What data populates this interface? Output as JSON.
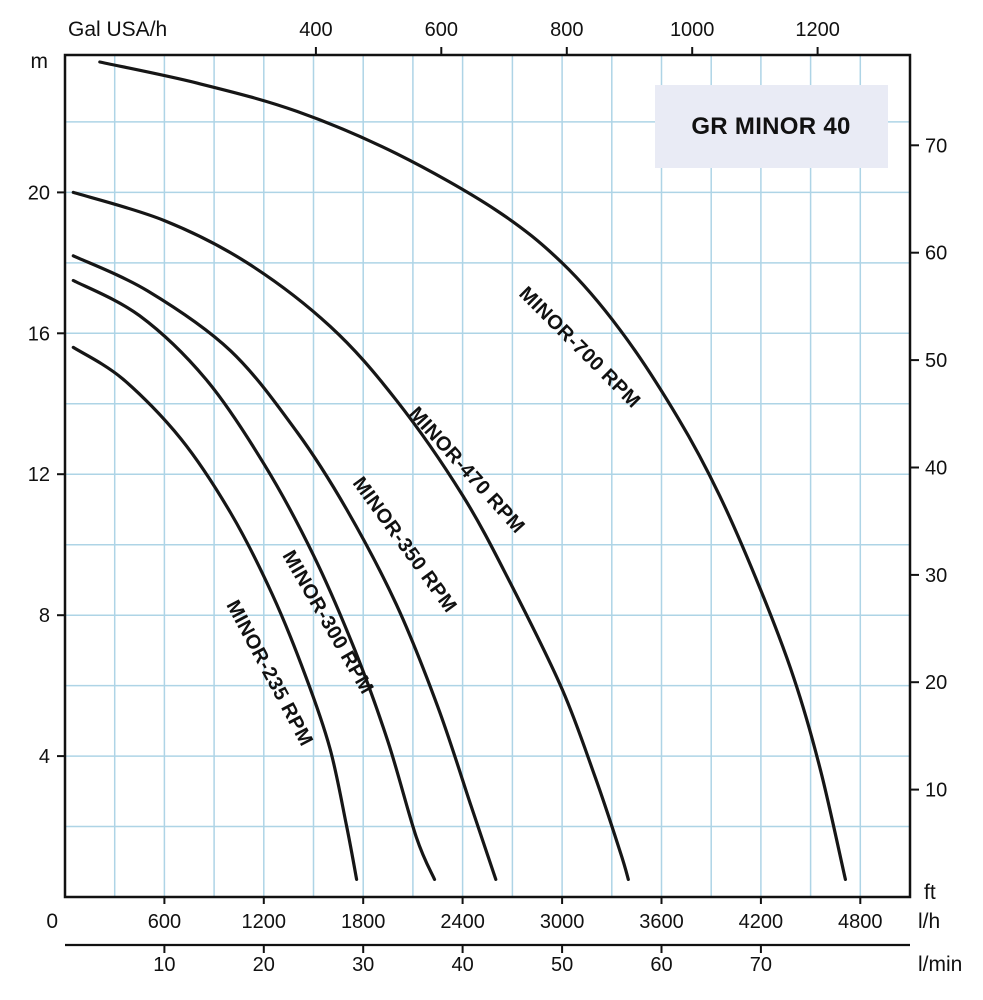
{
  "chart_data": {
    "type": "line",
    "title": "GR MINOR 40",
    "title_bg": "#e9ebf5",
    "colors": {
      "grid": "#aed4e6",
      "axis": "#111111",
      "curve": "#161616",
      "text": "#111111"
    },
    "grid": {
      "x_step_lh": 300,
      "y_step_m": 2,
      "on": true
    },
    "axes": {
      "top": {
        "unit": "Gal USA/h",
        "ticks": [
          400,
          600,
          800,
          1000,
          1200
        ],
        "lh_per_gal": 3.7854
      },
      "left": {
        "unit": "m",
        "ticks": [
          20,
          16,
          12,
          8,
          4
        ],
        "origin_label": "0",
        "range": [
          0,
          23.9
        ]
      },
      "right": {
        "unit": "ft",
        "ticks": [
          70,
          60,
          50,
          40,
          30,
          20,
          10
        ],
        "ft_per_m": 3.2808
      },
      "bottom_lh": {
        "unit": "l/h",
        "ticks": [
          600,
          1200,
          1800,
          2400,
          3000,
          3600,
          4200,
          4800
        ],
        "range": [
          0,
          5100
        ]
      },
      "bottom_lmin": {
        "unit": "l/min",
        "ticks": [
          10,
          20,
          30,
          40,
          50,
          60,
          70
        ],
        "lh_per_lmin": 60
      }
    },
    "series": [
      {
        "name": "MINOR-700 RPM",
        "label_anchor_lh_m": [
          2734,
          17.1
        ],
        "label_angle_deg": 45,
        "points_lh_m": [
          [
            210,
            23.7
          ],
          [
            800,
            23.1
          ],
          [
            1400,
            22.3
          ],
          [
            2000,
            21.1
          ],
          [
            2600,
            19.5
          ],
          [
            3000,
            18.0
          ],
          [
            3350,
            16.1
          ],
          [
            3700,
            13.6
          ],
          [
            3950,
            11.4
          ],
          [
            4200,
            8.7
          ],
          [
            4400,
            6.2
          ],
          [
            4560,
            3.6
          ],
          [
            4710,
            0.5
          ]
        ]
      },
      {
        "name": "MINOR-470 RPM",
        "label_anchor_lh_m": [
          2070,
          13.7
        ],
        "label_angle_deg": 48,
        "points_lh_m": [
          [
            50,
            20.0
          ],
          [
            600,
            19.2
          ],
          [
            1100,
            18.0
          ],
          [
            1600,
            16.2
          ],
          [
            2000,
            14.1
          ],
          [
            2400,
            11.4
          ],
          [
            2700,
            8.8
          ],
          [
            3000,
            5.9
          ],
          [
            3200,
            3.4
          ],
          [
            3350,
            1.3
          ],
          [
            3400,
            0.5
          ]
        ]
      },
      {
        "name": "MINOR-350 RPM",
        "label_anchor_lh_m": [
          1732,
          11.75
        ],
        "label_angle_deg": 54,
        "points_lh_m": [
          [
            50,
            18.2
          ],
          [
            500,
            17.2
          ],
          [
            1000,
            15.5
          ],
          [
            1400,
            13.2
          ],
          [
            1700,
            11.0
          ],
          [
            2000,
            8.3
          ],
          [
            2250,
            5.4
          ],
          [
            2450,
            2.6
          ],
          [
            2550,
            1.2
          ],
          [
            2600,
            0.5
          ]
        ]
      },
      {
        "name": "MINOR-300 RPM",
        "label_anchor_lh_m": [
          1310,
          9.7
        ],
        "label_angle_deg": 60,
        "points_lh_m": [
          [
            50,
            17.5
          ],
          [
            450,
            16.5
          ],
          [
            850,
            14.7
          ],
          [
            1200,
            12.3
          ],
          [
            1500,
            9.7
          ],
          [
            1750,
            7.0
          ],
          [
            1950,
            4.4
          ],
          [
            2120,
            1.7
          ],
          [
            2230,
            0.5
          ]
        ]
      },
      {
        "name": "MINOR-235 RPM",
        "label_anchor_lh_m": [
          972,
          8.3
        ],
        "label_angle_deg": 62,
        "points_lh_m": [
          [
            50,
            15.6
          ],
          [
            350,
            14.7
          ],
          [
            700,
            13.0
          ],
          [
            1000,
            10.9
          ],
          [
            1250,
            8.6
          ],
          [
            1450,
            6.3
          ],
          [
            1600,
            4.2
          ],
          [
            1700,
            2.0
          ],
          [
            1760,
            0.5
          ]
        ]
      }
    ]
  }
}
